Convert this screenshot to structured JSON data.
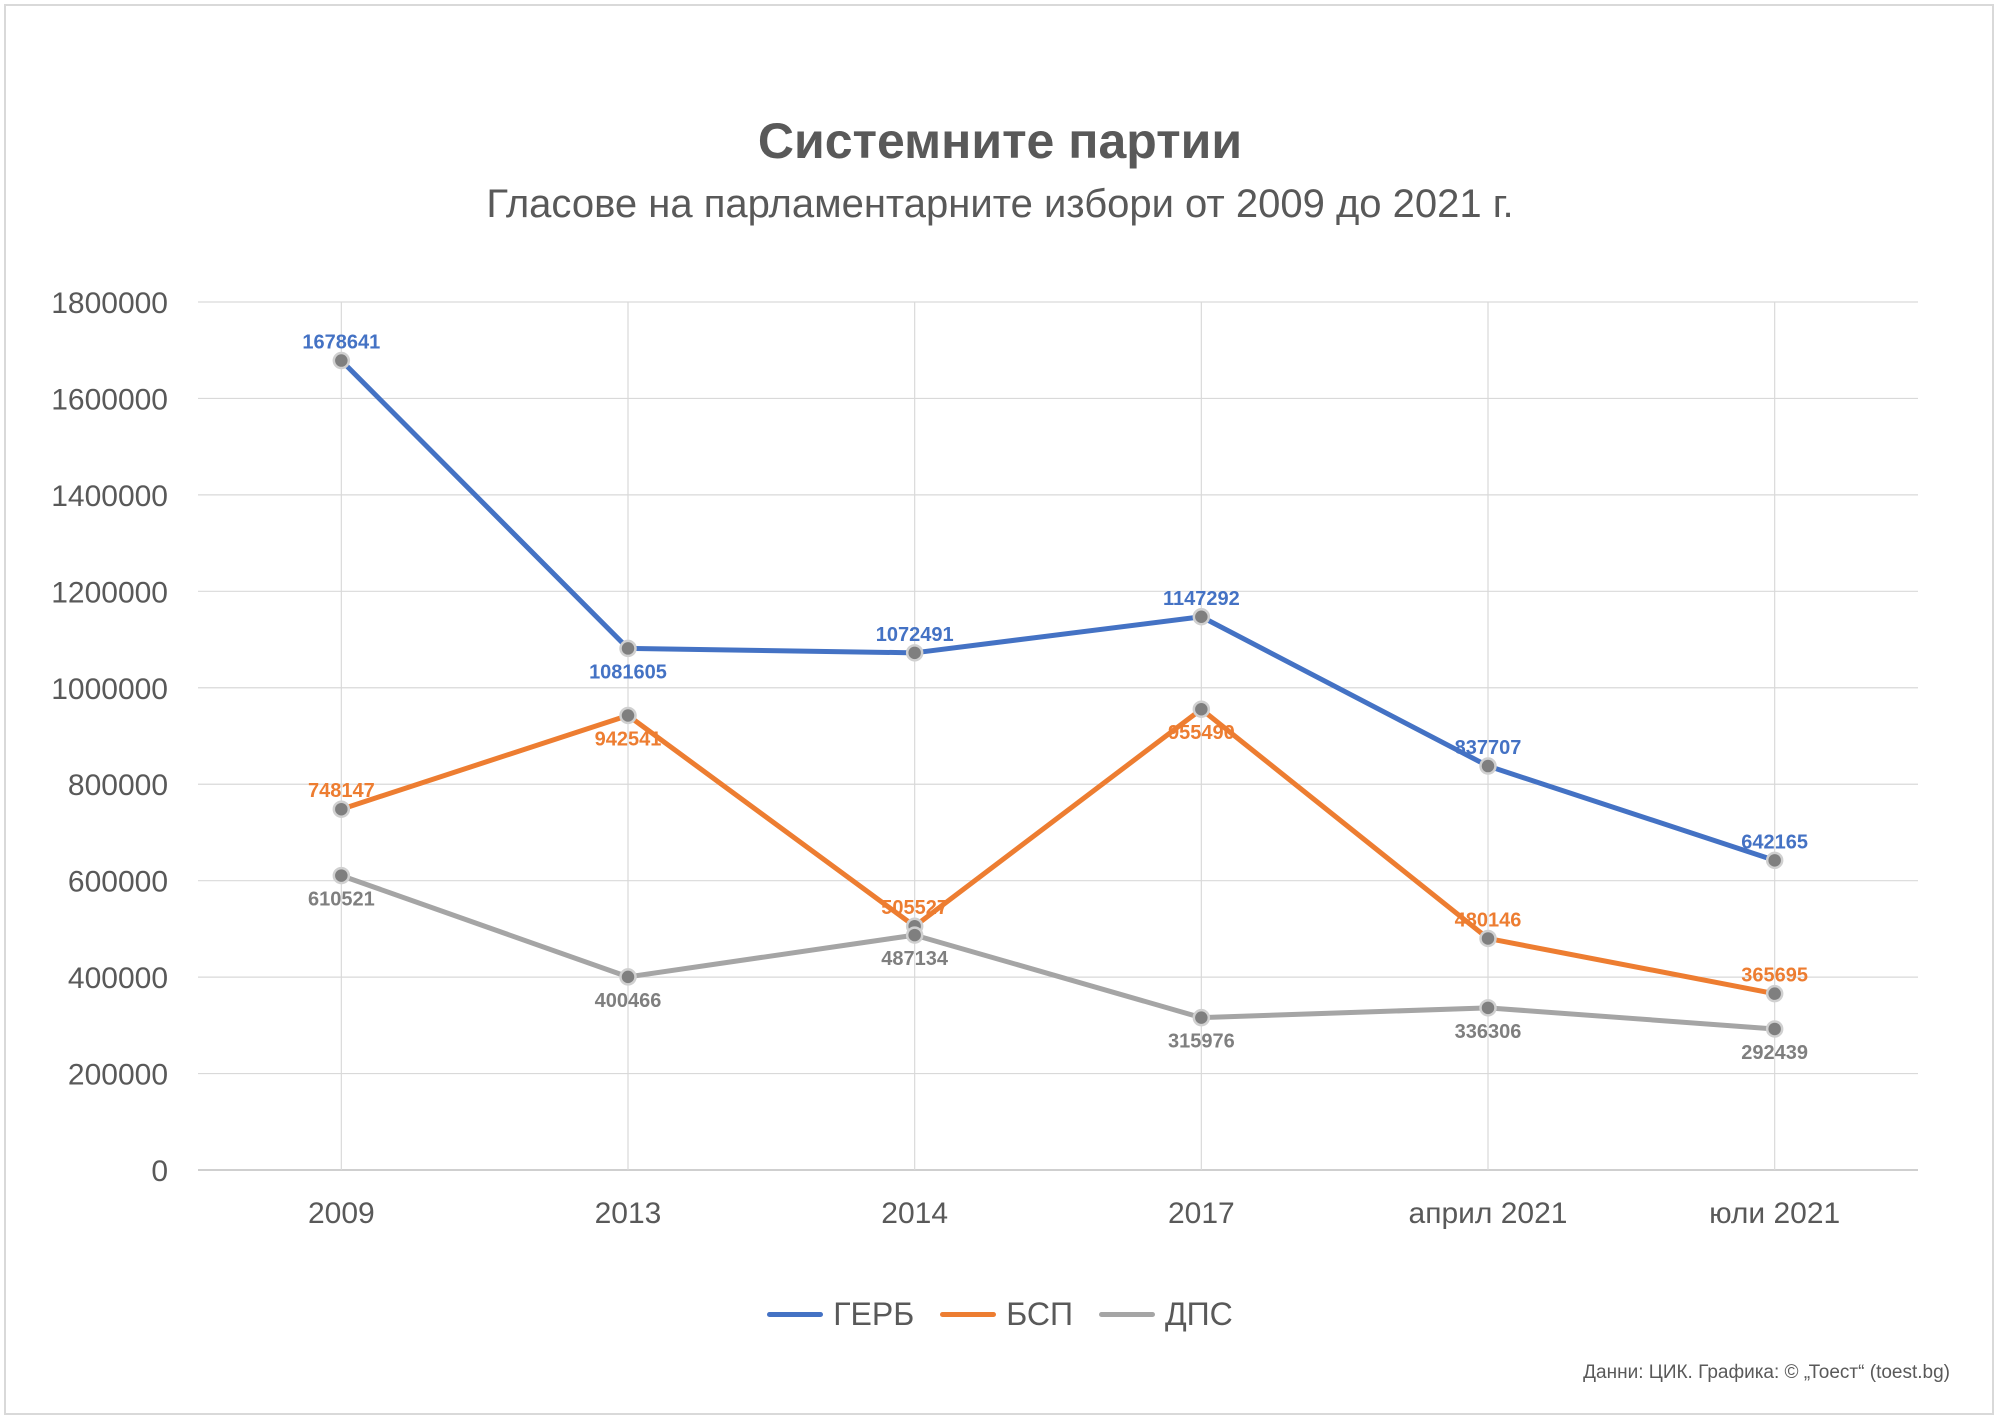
{
  "colors": {
    "gerb": "#4472c4",
    "bsp": "#ed7d31",
    "dps": "#a5a5a5",
    "marker": "#7f7f7f",
    "dps_label": "#7f7f7f",
    "grid": "#d9d9d9",
    "text": "#595959"
  },
  "chart_data": {
    "type": "line",
    "title": "Системните партии",
    "subtitle": "Гласове на парламентарните избори от 2009 до 2021 г.",
    "categories": [
      "2009",
      "2013",
      "2014",
      "2017",
      "април 2021",
      "юли 2021"
    ],
    "ylim": [
      0,
      1800000
    ],
    "yticks": [
      0,
      200000,
      400000,
      600000,
      800000,
      1000000,
      1200000,
      1400000,
      1600000,
      1800000
    ],
    "ytick_labels": [
      "0",
      "200000",
      "400000",
      "600000",
      "800000",
      "1000000",
      "1200000",
      "1400000",
      "1600000",
      "1800000"
    ],
    "grid": true,
    "legend_position": "bottom",
    "series": [
      {
        "key": "gerb",
        "name": "ГЕРБ",
        "values": [
          1678641,
          1081605,
          1072491,
          1147292,
          837707,
          642165
        ],
        "labels": [
          "1678641",
          "1081605",
          "1072491",
          "1147292",
          "837707",
          "642165"
        ],
        "label_pos": [
          "above",
          "below",
          "above",
          "above",
          "above",
          "above"
        ]
      },
      {
        "key": "bsp",
        "name": "БСП",
        "values": [
          748147,
          942541,
          505527,
          955490,
          480146,
          365695
        ],
        "labels": [
          "748147",
          "942541",
          "505527",
          "955490",
          "480146",
          "365695"
        ],
        "label_pos": [
          "above",
          "below",
          "above",
          "below",
          "above",
          "above"
        ]
      },
      {
        "key": "dps",
        "name": "ДПС",
        "values": [
          610521,
          400466,
          487134,
          315976,
          336306,
          292439
        ],
        "labels": [
          "610521",
          "400466",
          "487134",
          "315976",
          "336306",
          "292439"
        ],
        "label_pos": [
          "below",
          "below",
          "below",
          "below",
          "below",
          "below"
        ]
      }
    ]
  },
  "credit": "Данни: ЦИК. Графика: © „Тоест“ (toest.bg)"
}
